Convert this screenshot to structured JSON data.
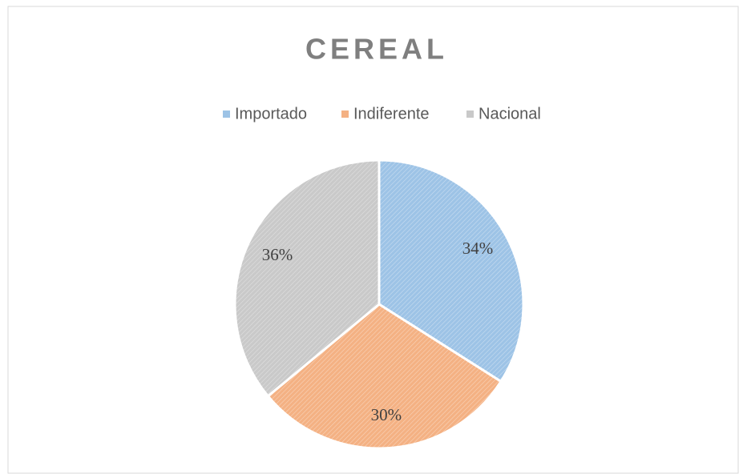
{
  "chart_data": {
    "type": "pie",
    "title": "CEREAL",
    "categories": [
      "Importado",
      "Indiferente",
      "Nacional"
    ],
    "values": [
      34,
      30,
      36
    ],
    "value_labels": [
      "34%",
      "30%",
      "36%"
    ],
    "colors": [
      "#9dc3e6",
      "#f4b183",
      "#c9c9c9"
    ],
    "legend": "top"
  }
}
